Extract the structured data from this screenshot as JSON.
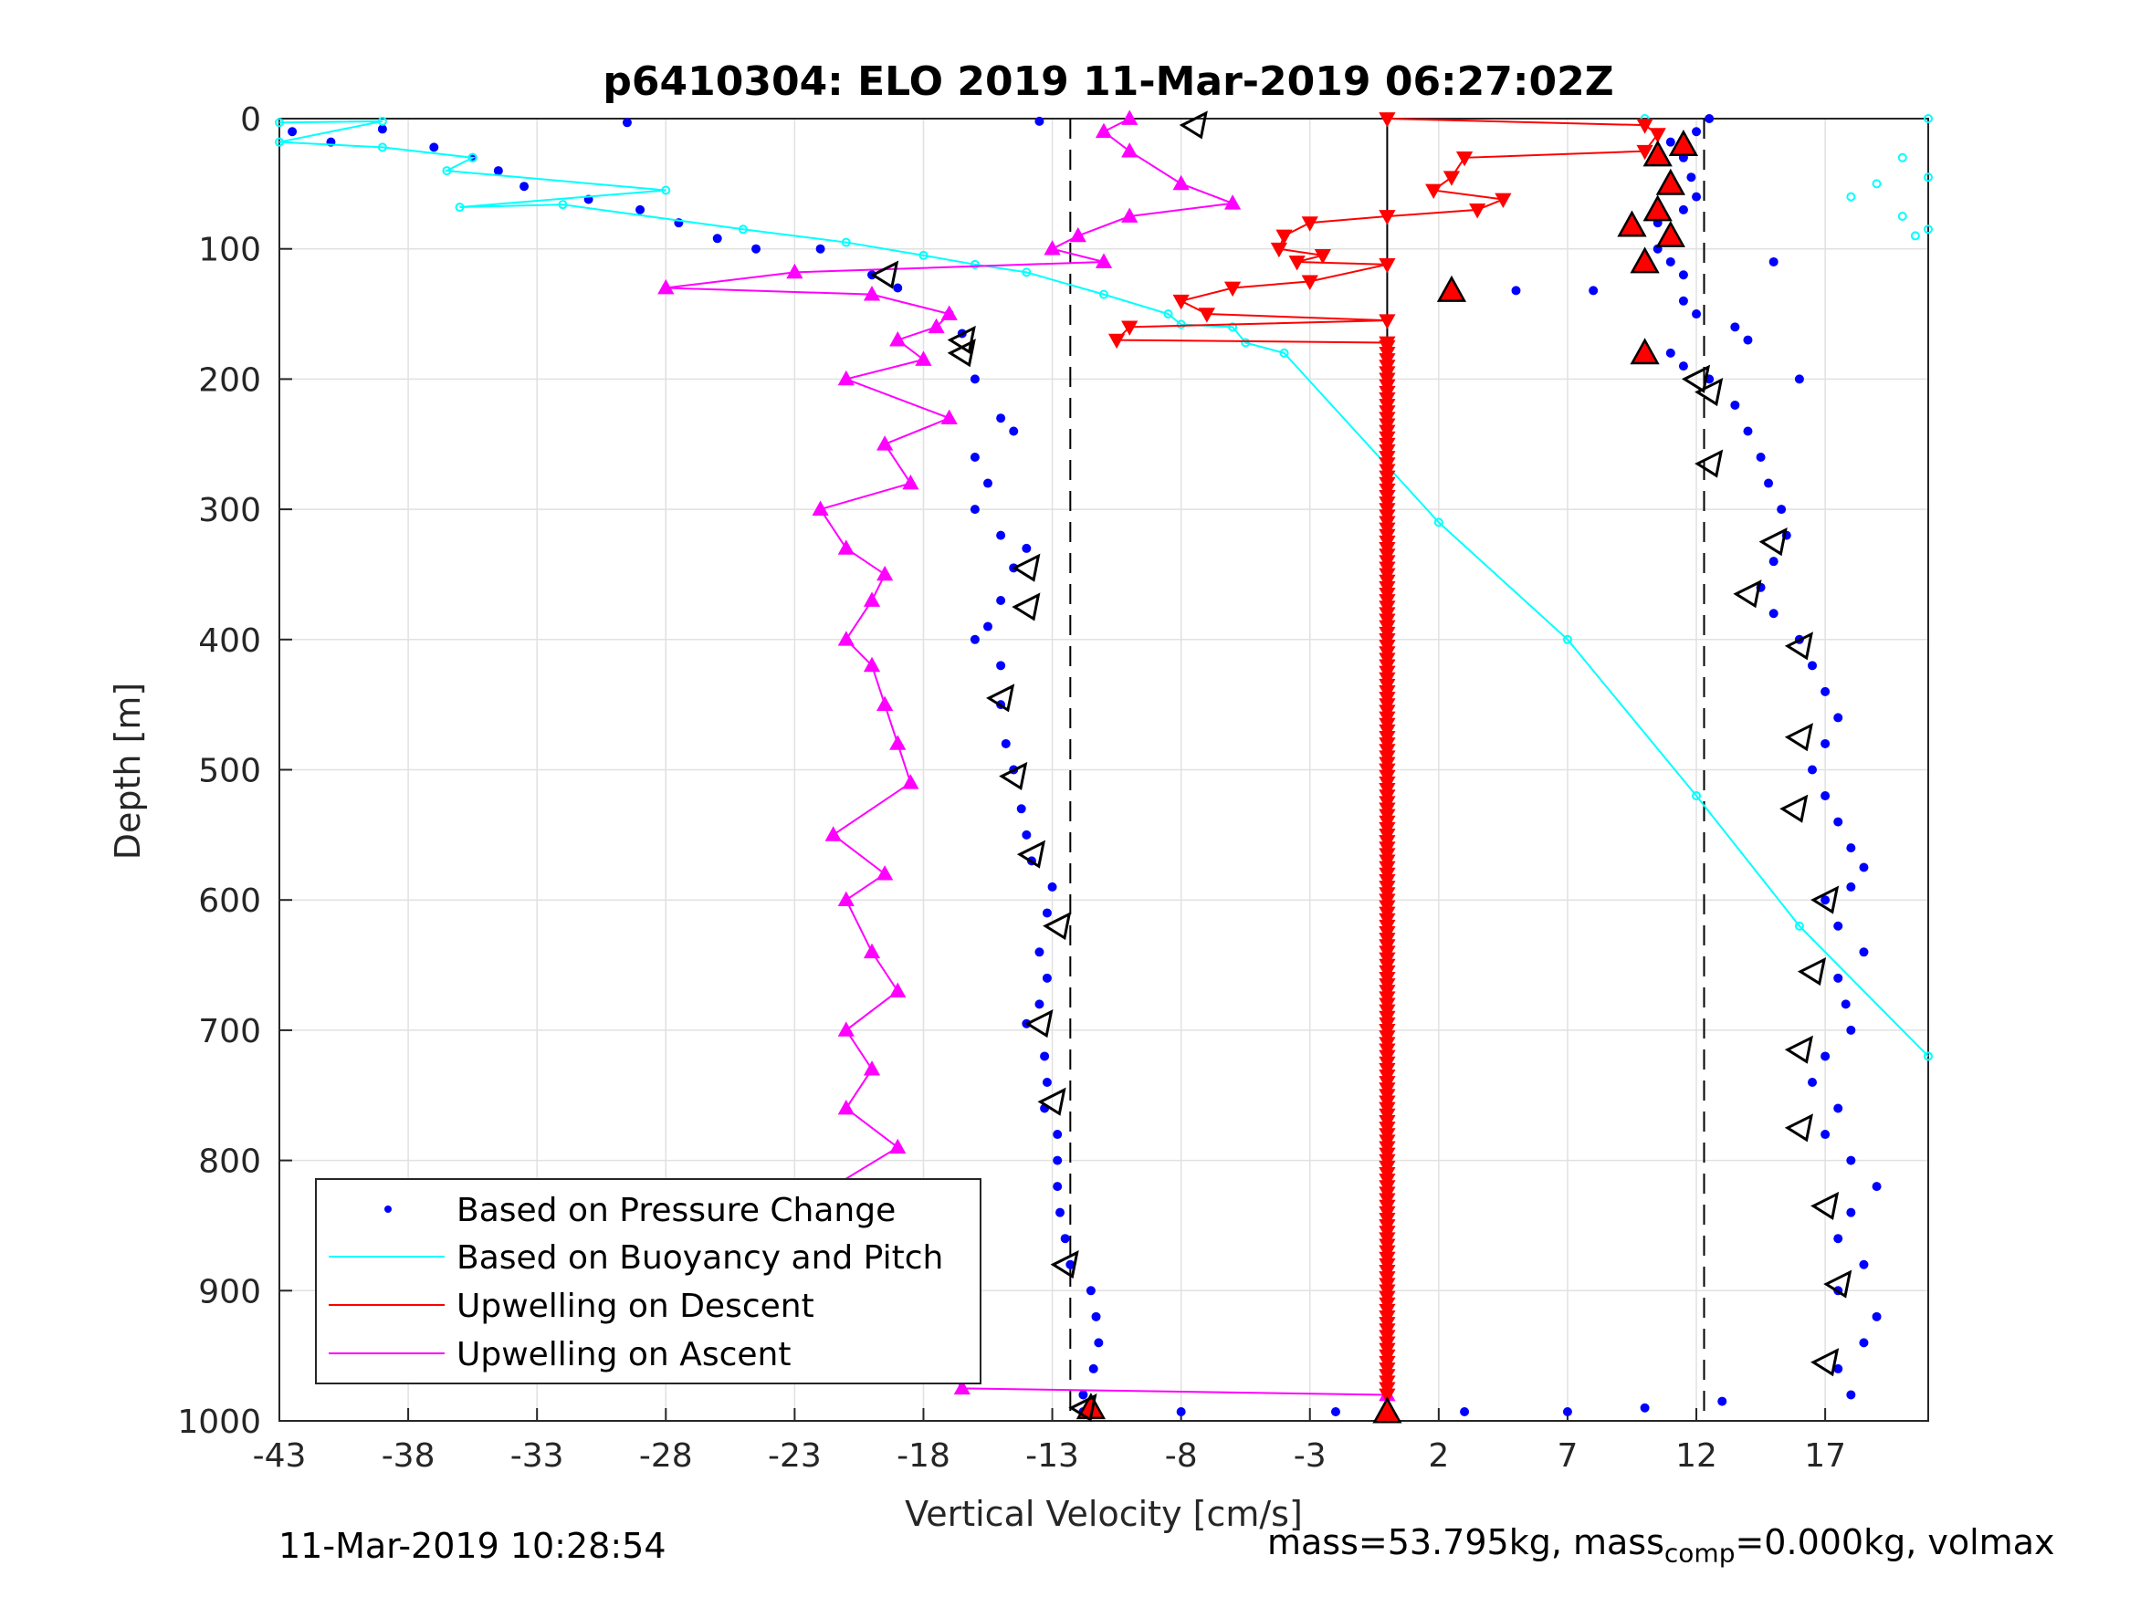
{
  "chart_data": {
    "type": "scatter",
    "title": "p6410304: ELO 2019 11-Mar-2019 06:27:02Z",
    "xlabel": "Vertical Velocity [cm/s]",
    "ylabel": "Depth [m]",
    "xlim": [
      -43,
      21
    ],
    "ylim": [
      0,
      1000
    ],
    "y_reversed": true,
    "grid": true,
    "xticks": [
      -43,
      -38,
      -33,
      -28,
      -23,
      -18,
      -13,
      -8,
      -3,
      2,
      7,
      12,
      17
    ],
    "yticks": [
      0,
      100,
      200,
      300,
      400,
      500,
      600,
      700,
      800,
      900,
      1000
    ],
    "reference_lines": [
      {
        "x": -12.3,
        "style": "dashed"
      },
      {
        "x": 0,
        "style": "solid"
      },
      {
        "x": 12.3,
        "style": "dashed"
      }
    ],
    "legend_position": "bottom-left",
    "series": [
      {
        "name": "Based on Pressure Change",
        "style": "dots",
        "color": "#0000ff",
        "descent": [
          [
            -42.5,
            10
          ],
          [
            -41,
            18
          ],
          [
            -39,
            8
          ],
          [
            -37,
            22
          ],
          [
            -35.5,
            30
          ],
          [
            -34.5,
            40
          ],
          [
            -33.5,
            52
          ],
          [
            -31,
            62
          ],
          [
            -29,
            70
          ],
          [
            -27.5,
            80
          ],
          [
            -26,
            92
          ],
          [
            -24.5,
            100
          ],
          [
            -22,
            100
          ],
          [
            -20,
            120
          ],
          [
            -19,
            130
          ],
          [
            -17,
            150
          ],
          [
            -16.5,
            165
          ],
          [
            -16,
            200
          ],
          [
            -15,
            230
          ],
          [
            -14.5,
            240
          ],
          [
            -16,
            260
          ],
          [
            -15.5,
            280
          ],
          [
            -16,
            300
          ],
          [
            -15,
            320
          ],
          [
            -14,
            330
          ],
          [
            -14.5,
            345
          ],
          [
            -15,
            370
          ],
          [
            -15.5,
            390
          ],
          [
            -16,
            400
          ],
          [
            -15,
            420
          ],
          [
            -15,
            450
          ],
          [
            -14.8,
            480
          ],
          [
            -14.5,
            500
          ],
          [
            -14.2,
            530
          ],
          [
            -14,
            550
          ],
          [
            -13.8,
            570
          ],
          [
            -13,
            590
          ],
          [
            -13.2,
            610
          ],
          [
            -13.5,
            640
          ],
          [
            -13.2,
            660
          ],
          [
            -13.5,
            680
          ],
          [
            -14,
            695
          ],
          [
            -13.3,
            720
          ],
          [
            -13.2,
            740
          ],
          [
            -13.3,
            760
          ],
          [
            -12.8,
            780
          ],
          [
            -12.8,
            800
          ],
          [
            -12.8,
            820
          ],
          [
            -12.7,
            840
          ],
          [
            -12.5,
            860
          ],
          [
            -12.3,
            880
          ],
          [
            -11.5,
            900
          ],
          [
            -11.3,
            920
          ],
          [
            -11.2,
            940
          ],
          [
            -11.4,
            960
          ],
          [
            -11.8,
            980
          ],
          [
            -11.8,
            993
          ],
          [
            -29.5,
            3
          ],
          [
            -13.5,
            2
          ],
          [
            -8,
            993
          ],
          [
            -2,
            993
          ],
          [
            3,
            993
          ],
          [
            7,
            993
          ],
          [
            10,
            990
          ],
          [
            13,
            985
          ]
        ],
        "ascent": [
          [
            12.5,
            0
          ],
          [
            12,
            10
          ],
          [
            11,
            18
          ],
          [
            11.5,
            30
          ],
          [
            11.8,
            45
          ],
          [
            12,
            60
          ],
          [
            11.5,
            70
          ],
          [
            10.5,
            80
          ],
          [
            11,
            90
          ],
          [
            10.5,
            100
          ],
          [
            11,
            110
          ],
          [
            11.5,
            120
          ],
          [
            8,
            132
          ],
          [
            5,
            132
          ],
          [
            2.5,
            132
          ],
          [
            11.5,
            140
          ],
          [
            12,
            150
          ],
          [
            13.5,
            160
          ],
          [
            14,
            170
          ],
          [
            11,
            180
          ],
          [
            11.5,
            190
          ],
          [
            12.5,
            200
          ],
          [
            13.5,
            220
          ],
          [
            14,
            240
          ],
          [
            14.5,
            260
          ],
          [
            14.8,
            280
          ],
          [
            15.3,
            300
          ],
          [
            15.5,
            320
          ],
          [
            15,
            340
          ],
          [
            14.5,
            360
          ],
          [
            15,
            380
          ],
          [
            16,
            400
          ],
          [
            16.5,
            420
          ],
          [
            17,
            440
          ],
          [
            17.5,
            460
          ],
          [
            17,
            480
          ],
          [
            16.5,
            500
          ],
          [
            17,
            520
          ],
          [
            17.5,
            540
          ],
          [
            18,
            560
          ],
          [
            18.5,
            575
          ],
          [
            18,
            590
          ],
          [
            17,
            600
          ],
          [
            17.5,
            620
          ],
          [
            18.5,
            640
          ],
          [
            17.5,
            660
          ],
          [
            17.8,
            680
          ],
          [
            18,
            700
          ],
          [
            17,
            720
          ],
          [
            16.5,
            740
          ],
          [
            17.5,
            760
          ],
          [
            17,
            780
          ],
          [
            18,
            800
          ],
          [
            19,
            820
          ],
          [
            18,
            840
          ],
          [
            17.5,
            860
          ],
          [
            18.5,
            880
          ],
          [
            17.5,
            900
          ],
          [
            19,
            920
          ],
          [
            18.5,
            940
          ],
          [
            17.5,
            960
          ],
          [
            18,
            980
          ],
          [
            16,
            200
          ],
          [
            15,
            110
          ]
        ]
      },
      {
        "name": "Based on Buoyancy and Pitch",
        "style": "line-circles",
        "color": "#00ffff",
        "points": [
          [
            -43,
            3
          ],
          [
            -39,
            2
          ],
          [
            -43,
            18
          ],
          [
            -39,
            22
          ],
          [
            -35.5,
            30
          ],
          [
            -36.5,
            40
          ],
          [
            -28,
            55
          ],
          [
            -36,
            68
          ],
          [
            -32,
            66
          ],
          [
            -25,
            85
          ],
          [
            -21,
            95
          ],
          [
            -18,
            105
          ],
          [
            -16,
            112
          ],
          [
            -14,
            118
          ],
          [
            -11,
            135
          ],
          [
            -8.5,
            150
          ],
          [
            -8,
            158
          ],
          [
            -6,
            160
          ],
          [
            -5.5,
            172
          ],
          [
            -4,
            180
          ],
          [
            2,
            310
          ],
          [
            7,
            400
          ],
          [
            12,
            520
          ],
          [
            16,
            620
          ],
          [
            21,
            720
          ]
        ],
        "surface_points": [
          [
            10,
            0
          ],
          [
            21,
            0
          ],
          [
            20,
            30
          ],
          [
            19,
            50
          ],
          [
            18,
            60
          ],
          [
            20,
            75
          ],
          [
            21,
            85
          ],
          [
            20.5,
            90
          ],
          [
            21,
            45
          ]
        ]
      },
      {
        "name": "Upwelling on Descent",
        "style": "line-down-triangles",
        "color": "#ff0000",
        "points": [
          [
            0,
            0
          ],
          [
            10,
            5
          ],
          [
            10.5,
            12
          ],
          [
            10,
            25
          ],
          [
            3,
            30
          ],
          [
            2.5,
            45
          ],
          [
            1.8,
            55
          ],
          [
            4.5,
            62
          ],
          [
            3.5,
            70
          ],
          [
            0,
            75
          ],
          [
            -3,
            80
          ],
          [
            -4,
            90
          ],
          [
            -4.2,
            100
          ],
          [
            -2.5,
            105
          ],
          [
            -3.5,
            110
          ],
          [
            0,
            112
          ],
          [
            -3,
            125
          ],
          [
            -6,
            130
          ],
          [
            -8,
            140
          ],
          [
            -7,
            150
          ],
          [
            0,
            155
          ],
          [
            -10,
            160
          ],
          [
            -10.5,
            170
          ],
          [
            0,
            172
          ]
        ]
      },
      {
        "name": "Upwelling on Ascent",
        "style": "line-up-triangles",
        "color": "#ff00ff",
        "points": [
          [
            -10,
            0
          ],
          [
            -11,
            10
          ],
          [
            -10,
            25
          ],
          [
            -8,
            50
          ],
          [
            -6,
            65
          ],
          [
            -10,
            75
          ],
          [
            -12,
            90
          ],
          [
            -13,
            100
          ],
          [
            -11,
            110
          ],
          [
            -23,
            118
          ],
          [
            -28,
            130
          ],
          [
            -20,
            135
          ],
          [
            -17,
            150
          ],
          [
            -17.5,
            160
          ],
          [
            -19,
            170
          ],
          [
            -18,
            185
          ],
          [
            -21,
            200
          ],
          [
            -17,
            230
          ],
          [
            -19.5,
            250
          ],
          [
            -18.5,
            280
          ],
          [
            -22,
            300
          ],
          [
            -21,
            330
          ],
          [
            -19.5,
            350
          ],
          [
            -20,
            370
          ],
          [
            -21,
            400
          ],
          [
            -20,
            420
          ],
          [
            -19.5,
            450
          ],
          [
            -19,
            480
          ],
          [
            -18.5,
            510
          ],
          [
            -21.5,
            550
          ],
          [
            -19.5,
            580
          ],
          [
            -21,
            600
          ],
          [
            -20,
            640
          ],
          [
            -19,
            670
          ],
          [
            -21,
            700
          ],
          [
            -20,
            730
          ],
          [
            -21,
            760
          ],
          [
            -19,
            790
          ],
          [
            -21.5,
            820
          ],
          [
            -19.5,
            860
          ],
          [
            -19,
            900
          ],
          [
            -18,
            930
          ],
          [
            -17,
            960
          ],
          [
            -16.5,
            975
          ],
          [
            0,
            980
          ]
        ]
      }
    ],
    "markers": {
      "red_triangles": [
        [
          10.5,
          28
        ],
        [
          11.5,
          20
        ],
        [
          11,
          50
        ],
        [
          10.5,
          70
        ],
        [
          9.5,
          82
        ],
        [
          11,
          90
        ],
        [
          10,
          110
        ],
        [
          2.5,
          132
        ],
        [
          10,
          180
        ],
        [
          -11.5,
          990
        ],
        [
          0,
          993
        ]
      ],
      "open_triangles": [
        [
          -7.5,
          5
        ],
        [
          -19.5,
          120
        ],
        [
          -16.5,
          170
        ],
        [
          -16.5,
          180
        ],
        [
          -14,
          345
        ],
        [
          -14,
          375
        ],
        [
          -15,
          445
        ],
        [
          -14.5,
          505
        ],
        [
          -13.8,
          565
        ],
        [
          -12.8,
          620
        ],
        [
          -13.5,
          695
        ],
        [
          -13,
          755
        ],
        [
          -12.5,
          880
        ],
        [
          -11.8,
          990
        ],
        [
          12,
          200
        ],
        [
          12.5,
          210
        ],
        [
          12.5,
          265
        ],
        [
          15,
          325
        ],
        [
          14,
          365
        ],
        [
          16,
          405
        ],
        [
          16,
          475
        ],
        [
          15.8,
          530
        ],
        [
          17,
          600
        ],
        [
          16.5,
          655
        ],
        [
          16,
          715
        ],
        [
          16,
          775
        ],
        [
          17,
          835
        ],
        [
          17.5,
          895
        ],
        [
          17,
          955
        ]
      ]
    },
    "legend": [
      "Based on Pressure Change",
      "Based on Buoyancy and Pitch",
      "Upwelling on Descent",
      "Upwelling on Ascent"
    ]
  },
  "footer": {
    "timestamp": "11-Mar-2019 10:28:54",
    "mass_text": "mass=53.795kg, mass",
    "mass_sub": "comp",
    "mass_rest": "=0.000kg, volmax"
  }
}
